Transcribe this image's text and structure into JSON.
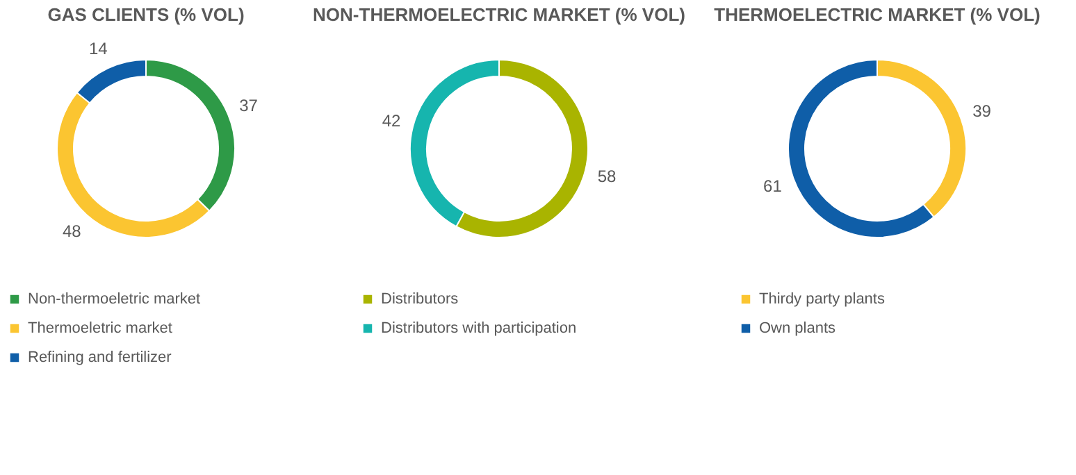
{
  "chart_data": [
    {
      "type": "donut",
      "title": "GAS CLIENTS (% VOL)",
      "categories": [
        "Non-thermoeletric market",
        "Thermoeletric market",
        "Refining and fertilizer"
      ],
      "values": [
        37,
        48,
        14
      ],
      "colors": [
        "#2e9a47",
        "#fbc531",
        "#0f5ea8"
      ],
      "data_labels": true,
      "legend": "bottom"
    },
    {
      "type": "donut",
      "title": "NON-THERMOELECTRIC MARKET (% VOL)",
      "categories": [
        "Distributors",
        "Distributors with participation"
      ],
      "values": [
        58,
        42
      ],
      "colors": [
        "#a9b400",
        "#16b5ae"
      ],
      "data_labels": true,
      "legend": "bottom"
    },
    {
      "type": "donut",
      "title": "THERMOELECTRIC MARKET (% VOL)",
      "categories": [
        "Thirdy party plants",
        "Own plants"
      ],
      "values": [
        39,
        61
      ],
      "colors": [
        "#fbc531",
        "#0f5ea8"
      ],
      "data_labels": true,
      "legend": "bottom"
    }
  ]
}
